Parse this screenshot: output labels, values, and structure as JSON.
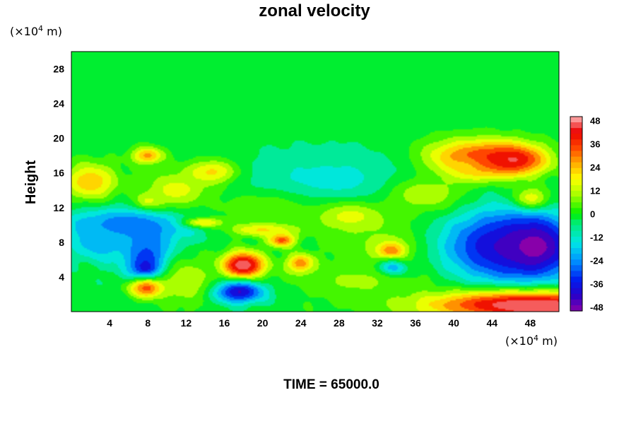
{
  "chart_data": {
    "type": "heatmap",
    "title": "zonal velocity",
    "ylabel": "Height",
    "xlabel": "",
    "x_unit": {
      "prefix": "(×10",
      "exp": "4",
      "suffix": " m)"
    },
    "y_unit": {
      "prefix": "(×10",
      "exp": "4",
      "suffix": " m)"
    },
    "xlim": [
      0,
      51
    ],
    "ylim": [
      0,
      30
    ],
    "xticks": [
      4,
      8,
      12,
      16,
      20,
      24,
      28,
      32,
      36,
      40,
      44,
      48
    ],
    "yticks": [
      4,
      8,
      12,
      16,
      20,
      24,
      28
    ],
    "colorbar": {
      "range": [
        -50,
        50
      ],
      "ticks": [
        48,
        36,
        24,
        12,
        0,
        -12,
        -24,
        -36,
        -48
      ],
      "levels": [
        -50,
        -44,
        -38,
        -32,
        -26,
        -20,
        -14,
        -8,
        -2,
        4,
        10,
        16,
        22,
        28,
        34,
        40,
        46
      ]
    },
    "background_value": -2,
    "features": [
      {
        "x": 26,
        "y": 25,
        "sx": 30,
        "sy": 6,
        "v": -2
      },
      {
        "x": 42,
        "y": 17.5,
        "sx": 4,
        "sy": 1.6,
        "v": 40
      },
      {
        "x": 46,
        "y": 17.5,
        "sx": 2.5,
        "sy": 1.2,
        "v": 46
      },
      {
        "x": 41,
        "y": 16.5,
        "sx": 1.4,
        "sy": 1,
        "v": 30
      },
      {
        "x": 48,
        "y": 12.8,
        "sx": 1.4,
        "sy": 1,
        "v": 32
      },
      {
        "x": 15,
        "y": 16,
        "sx": 2,
        "sy": 1,
        "v": 34
      },
      {
        "x": 8,
        "y": 18,
        "sx": 1.2,
        "sy": 0.7,
        "v": 28
      },
      {
        "x": 8,
        "y": 12.5,
        "sx": 1,
        "sy": 0.7,
        "v": 26
      },
      {
        "x": 33,
        "y": 8,
        "sx": 4,
        "sy": 2.5,
        "v": 10
      },
      {
        "x": 27,
        "y": 14.5,
        "sx": 8,
        "sy": 3,
        "v": -14
      },
      {
        "x": 6,
        "y": 10,
        "sx": 5,
        "sy": 1.5,
        "v": -28
      },
      {
        "x": 8,
        "y": 6.5,
        "sx": 2,
        "sy": 2,
        "v": -32
      },
      {
        "x": 8,
        "y": 5,
        "sx": 1,
        "sy": 0.8,
        "v": -44
      },
      {
        "x": 8,
        "y": 2.7,
        "sx": 1.4,
        "sy": 0.8,
        "v": 36
      },
      {
        "x": 18,
        "y": 5.3,
        "sx": 1.7,
        "sy": 1.2,
        "v": 40
      },
      {
        "x": 18,
        "y": 5.3,
        "sx": 1,
        "sy": 0.7,
        "v": 48
      },
      {
        "x": 17.5,
        "y": 2.3,
        "sx": 2,
        "sy": 0.9,
        "v": -44
      },
      {
        "x": 22,
        "y": 8.3,
        "sx": 1,
        "sy": 0.6,
        "v": 36
      },
      {
        "x": 24,
        "y": 5.5,
        "sx": 1,
        "sy": 0.8,
        "v": 34
      },
      {
        "x": 20,
        "y": 9.5,
        "sx": 2.5,
        "sy": 0.6,
        "v": 24
      },
      {
        "x": 14,
        "y": 10.3,
        "sx": 1.5,
        "sy": 0.4,
        "v": 22
      },
      {
        "x": 33.5,
        "y": 7,
        "sx": 1,
        "sy": 0.7,
        "v": 34
      },
      {
        "x": 33.5,
        "y": 4.8,
        "sx": 1.1,
        "sy": 0.7,
        "v": -46
      },
      {
        "x": 44,
        "y": 7.5,
        "sx": 4,
        "sy": 3,
        "v": -36
      },
      {
        "x": 48.5,
        "y": 7.5,
        "sx": 3,
        "sy": 2.6,
        "v": -50
      },
      {
        "x": 46,
        "y": 0.8,
        "sx": 7,
        "sy": 1.2,
        "v": 44
      },
      {
        "x": 50,
        "y": 0.3,
        "sx": 3,
        "sy": 0.9,
        "v": 52
      },
      {
        "x": 3,
        "y": 8,
        "sx": 2,
        "sy": 1.5,
        "v": -22
      },
      {
        "x": 37,
        "y": 13.5,
        "sx": 3,
        "sy": 1.5,
        "v": 12
      },
      {
        "x": 2,
        "y": 15,
        "sx": 2,
        "sy": 1.5,
        "v": 24
      },
      {
        "x": 11,
        "y": 14,
        "sx": 2.5,
        "sy": 1.5,
        "v": 16
      },
      {
        "x": 29,
        "y": 11,
        "sx": 3,
        "sy": 1.3,
        "v": 16
      },
      {
        "x": 20,
        "y": 12,
        "sx": 4,
        "sy": 1.5,
        "v": 6
      },
      {
        "x": 30,
        "y": 3.5,
        "sx": 5,
        "sy": 1.5,
        "v": 8
      },
      {
        "x": 12,
        "y": 3.5,
        "sx": 2,
        "sy": 2,
        "v": 12
      }
    ]
  },
  "footer": {
    "time_label": "TIME = 65000.0"
  }
}
